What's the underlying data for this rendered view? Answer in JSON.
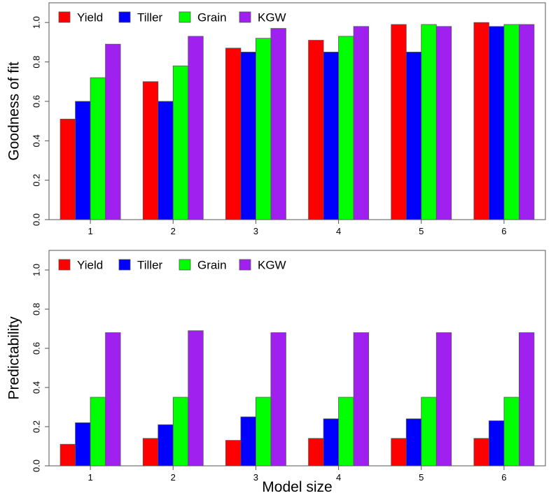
{
  "chart_data": [
    {
      "type": "bar",
      "xlabel": "",
      "ylabel": "Goodness of fit",
      "categories": [
        "1",
        "2",
        "3",
        "4",
        "5",
        "6"
      ],
      "ylim": [
        0,
        1.1
      ],
      "yticks": [
        "0.0",
        "0.2",
        "0.4",
        "0.6",
        "0.8",
        "1.0"
      ],
      "legend": "top-left",
      "series": [
        {
          "name": "Yield",
          "color": "#ff0000",
          "values": [
            0.51,
            0.7,
            0.87,
            0.91,
            0.99,
            1.0
          ]
        },
        {
          "name": "Tiller",
          "color": "#0000ff",
          "values": [
            0.6,
            0.6,
            0.85,
            0.85,
            0.85,
            0.98
          ]
        },
        {
          "name": "Grain",
          "color": "#00ff00",
          "values": [
            0.72,
            0.78,
            0.92,
            0.93,
            0.99,
            0.99
          ]
        },
        {
          "name": "KGW",
          "color": "#a020f0",
          "values": [
            0.89,
            0.93,
            0.97,
            0.98,
            0.98,
            0.99
          ]
        }
      ]
    },
    {
      "type": "bar",
      "xlabel": "Model size",
      "ylabel": "Predictability",
      "categories": [
        "1",
        "2",
        "3",
        "4",
        "5",
        "6"
      ],
      "ylim": [
        0,
        1.1
      ],
      "yticks": [
        "0.0",
        "0.2",
        "0.4",
        "0.6",
        "0.8",
        "1.0"
      ],
      "legend": "top-left",
      "series": [
        {
          "name": "Yield",
          "color": "#ff0000",
          "values": [
            0.11,
            0.14,
            0.13,
            0.14,
            0.14,
            0.14
          ]
        },
        {
          "name": "Tiller",
          "color": "#0000ff",
          "values": [
            0.22,
            0.21,
            0.25,
            0.24,
            0.24,
            0.23
          ]
        },
        {
          "name": "Grain",
          "color": "#00ff00",
          "values": [
            0.35,
            0.35,
            0.35,
            0.35,
            0.35,
            0.35
          ]
        },
        {
          "name": "KGW",
          "color": "#a020f0",
          "values": [
            0.68,
            0.69,
            0.68,
            0.68,
            0.68,
            0.68
          ]
        }
      ]
    }
  ]
}
